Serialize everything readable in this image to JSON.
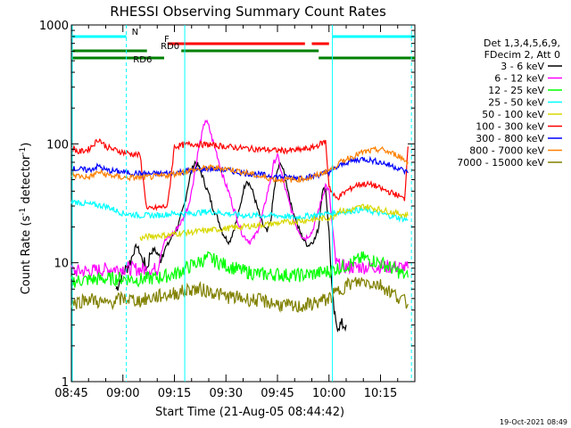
{
  "chart_data": {
    "type": "line",
    "title": "RHESSI Observing Summary Count Rates",
    "xlabel": "Start Time (21-Aug-05 08:44:42)",
    "ylabel_main": "Count Rate (s",
    "ylabel_sup1": "-1",
    "ylabel_mid": " detector",
    "ylabel_sup2": "-1",
    "ylabel_end": ")",
    "yscale": "log",
    "ylim": [
      1,
      1000
    ],
    "xlim_minutes": [
      0,
      100
    ],
    "x_ticks": [
      {
        "label": "08:45",
        "min": 0
      },
      {
        "label": "09:00",
        "min": 15
      },
      {
        "label": "09:15",
        "min": 30
      },
      {
        "label": "09:30",
        "min": 45
      },
      {
        "label": "09:45",
        "min": 60
      },
      {
        "label": "10:00",
        "min": 75
      },
      {
        "label": "10:15",
        "min": 90
      }
    ],
    "y_ticks": [
      {
        "label": "1",
        "value": 1
      },
      {
        "label": "10",
        "value": 10
      },
      {
        "label": "100",
        "value": 100
      },
      {
        "label": "1000",
        "value": 1000
      }
    ],
    "legend_header": [
      "Det 1,3,4,5,6,9,",
      "FDecim 2, Att 0"
    ],
    "series": [
      {
        "name": "3 - 6 keV",
        "color": "#000000",
        "x": [
          13,
          14,
          15,
          16,
          17,
          18,
          19,
          20,
          21,
          22,
          23,
          24,
          25,
          26,
          27,
          28,
          29,
          30,
          31,
          32,
          33,
          34,
          35,
          36,
          37,
          38,
          39,
          40,
          41,
          42,
          43,
          44,
          45,
          46,
          47,
          48,
          49,
          50,
          51,
          52,
          53,
          54,
          55,
          56,
          57,
          58,
          59,
          60,
          61,
          62,
          63,
          64,
          65,
          66,
          67,
          68,
          69,
          70,
          71,
          72,
          73,
          74,
          75,
          76,
          77,
          78,
          79,
          80
        ],
        "values": [
          6,
          7,
          8,
          9,
          10,
          12,
          14,
          12,
          10,
          9,
          12,
          13,
          12,
          11,
          13,
          14,
          16,
          18,
          20,
          25,
          32,
          45,
          60,
          70,
          65,
          55,
          45,
          38,
          30,
          26,
          22,
          18,
          16,
          15,
          18,
          22,
          28,
          40,
          50,
          45,
          38,
          30,
          24,
          20,
          18,
          22,
          40,
          60,
          70,
          55,
          42,
          30,
          25,
          20,
          17,
          15,
          14,
          15,
          16,
          20,
          40,
          42,
          18,
          5,
          3,
          3,
          3,
          3
        ]
      },
      {
        "name": "6 - 12 keV",
        "color": "#ff00ff",
        "x": [
          0,
          5,
          10,
          15,
          20,
          25,
          26,
          27,
          28,
          29,
          30,
          31,
          32,
          33,
          34,
          35,
          36,
          37,
          38,
          39,
          40,
          41,
          42,
          43,
          44,
          45,
          46,
          47,
          48,
          49,
          50,
          51,
          52,
          53,
          54,
          55,
          56,
          57,
          58,
          59,
          60,
          61,
          62,
          63,
          64,
          65,
          66,
          67,
          68,
          69,
          70,
          71,
          72,
          73,
          74,
          75,
          76,
          77,
          78,
          79,
          80,
          85,
          90,
          95,
          98
        ],
        "values": [
          8.5,
          8.5,
          8.8,
          9,
          8.8,
          8.8,
          12,
          15,
          16,
          17,
          18,
          20,
          22,
          25,
          30,
          40,
          60,
          90,
          120,
          160,
          140,
          110,
          90,
          70,
          55,
          45,
          38,
          30,
          25,
          20,
          17,
          16,
          15,
          16,
          18,
          22,
          28,
          38,
          50,
          70,
          80,
          60,
          45,
          35,
          28,
          22,
          19,
          17,
          16,
          17,
          18,
          22,
          28,
          35,
          45,
          40,
          20,
          10,
          9.5,
          9.3,
          9.2,
          9.2,
          9.3,
          9.2,
          9
        ]
      },
      {
        "name": "12 - 25 keV",
        "color": "#00ff00",
        "x": [
          0,
          5,
          10,
          15,
          20,
          25,
          30,
          35,
          40,
          45,
          50,
          55,
          60,
          65,
          70,
          75,
          80,
          85,
          90,
          95,
          98
        ],
        "values": [
          7,
          7.2,
          7.3,
          7.4,
          7.2,
          7.5,
          8,
          9.5,
          11,
          9.5,
          8.5,
          8,
          8,
          7.8,
          8,
          8.5,
          9.5,
          11,
          10,
          8.5,
          7.5
        ]
      },
      {
        "name": "25 - 50 keV",
        "color": "#00ffff",
        "x": [
          0,
          5,
          10,
          15,
          20,
          25,
          30,
          35,
          40,
          45,
          50,
          55,
          60,
          65,
          70,
          75,
          80,
          85,
          90,
          95,
          98
        ],
        "values": [
          33,
          31,
          30,
          26,
          25,
          25,
          26,
          26,
          27,
          26,
          25,
          25,
          25,
          24,
          25,
          26,
          27,
          28,
          26,
          24,
          23
        ]
      },
      {
        "name": "50 - 100 keV",
        "color": "#d8d800",
        "x": [
          20,
          22,
          25,
          28,
          30,
          76,
          77,
          78,
          80,
          85,
          90,
          95,
          98
        ],
        "values": [
          16,
          16.5,
          17,
          17,
          17.5,
          24,
          26,
          28,
          27,
          30,
          28,
          26,
          25
        ]
      },
      {
        "name": "100 - 300 keV",
        "color": "#ff0000",
        "x": [
          0,
          1,
          2,
          5,
          8,
          10,
          12,
          15,
          18,
          20,
          22,
          25,
          28,
          30,
          35,
          40,
          45,
          50,
          55,
          60,
          65,
          70,
          74,
          75,
          76,
          77,
          78,
          80,
          83,
          85,
          88,
          90,
          92,
          95,
          97,
          98
        ],
        "values": [
          95,
          90,
          85,
          90,
          110,
          95,
          90,
          85,
          82,
          80,
          28,
          29,
          30,
          95,
          100,
          98,
          95,
          92,
          90,
          88,
          88,
          92,
          105,
          45,
          38,
          35,
          36,
          40,
          45,
          46,
          45,
          42,
          40,
          37,
          34,
          95
        ]
      },
      {
        "name": "300 - 800 keV",
        "color": "#0000ff",
        "x": [
          0,
          5,
          8,
          10,
          15,
          20,
          25,
          30,
          35,
          40,
          45,
          50,
          55,
          60,
          65,
          70,
          75,
          80,
          85,
          90,
          95,
          98
        ],
        "values": [
          62,
          60,
          65,
          60,
          58,
          56,
          56,
          57,
          60,
          62,
          60,
          57,
          55,
          53,
          52,
          53,
          58,
          70,
          75,
          70,
          63,
          57
        ]
      },
      {
        "name": "800 - 7000 keV",
        "color": "#ff8000",
        "x": [
          0,
          5,
          8,
          10,
          15,
          20,
          25,
          30,
          35,
          40,
          45,
          50,
          55,
          60,
          65,
          70,
          75,
          80,
          85,
          90,
          95,
          98
        ],
        "values": [
          55,
          52,
          58,
          55,
          52,
          52,
          53,
          56,
          60,
          63,
          62,
          58,
          53,
          50,
          50,
          52,
          60,
          75,
          85,
          90,
          80,
          70
        ]
      },
      {
        "name": "7000 - 15000 keV",
        "color": "#808000",
        "x": [
          0,
          5,
          10,
          15,
          20,
          25,
          30,
          35,
          40,
          45,
          50,
          55,
          60,
          65,
          70,
          75,
          80,
          85,
          90,
          95,
          98
        ],
        "values": [
          4.5,
          5,
          4.5,
          5,
          4.8,
          5.2,
          5.5,
          6,
          5.8,
          5.2,
          5,
          4.8,
          4.5,
          4.2,
          4.5,
          5,
          6.5,
          7,
          6.5,
          5.2,
          4.5
        ]
      }
    ],
    "annotations": {
      "top_bars": [
        {
          "label": "N",
          "color": "#00ffff",
          "segments": [
            [
              0,
              16
            ],
            [
              76,
              100
            ]
          ]
        },
        {
          "label": "F",
          "color": "#ff0000",
          "segments": [
            [
              28,
              68
            ],
            [
              70,
              75
            ]
          ]
        },
        {
          "label": "RD0",
          "color": "#008000",
          "segments": [
            [
              0,
              22
            ],
            [
              32,
              72
            ]
          ]
        },
        {
          "label": "RD6",
          "color": "#008000",
          "segments": [
            [
              0,
              27
            ],
            [
              72,
              100
            ]
          ]
        }
      ]
    },
    "footer_timestamp": "19-Oct-2021 08:49"
  }
}
